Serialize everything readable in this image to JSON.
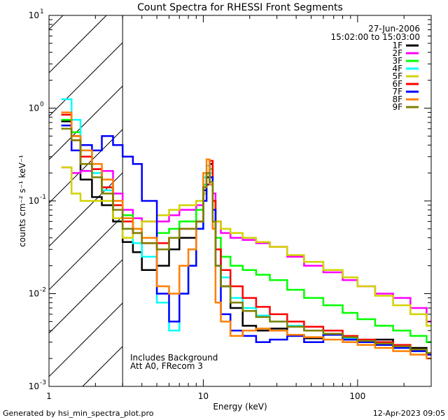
{
  "chart_data": {
    "type": "line",
    "title": "Count Spectra for RHESSI Front Segments",
    "xlabel": "Energy (keV)",
    "ylabel": "counts cm⁻² s⁻¹ keV⁻¹",
    "xscale": "log",
    "yscale": "log",
    "xlim": [
      1,
      300
    ],
    "ylim": [
      0.001,
      10
    ],
    "x_ticks": [
      {
        "value": 1,
        "label": "1"
      },
      {
        "value": 10,
        "label": "10"
      },
      {
        "value": 100,
        "label": "100"
      }
    ],
    "y_ticks": [
      {
        "value": 0.001,
        "base": "10",
        "exp": "-3"
      },
      {
        "value": 0.01,
        "base": "10",
        "exp": "-2"
      },
      {
        "value": 0.1,
        "base": "10",
        "exp": "-1"
      },
      {
        "value": 1,
        "base": "10",
        "exp": "0"
      },
      {
        "value": 10,
        "base": "10",
        "exp": "1"
      }
    ],
    "date": "27-Jun-2006",
    "time_range": "15:02:00 to 15:03:00",
    "hatched_region_upper_kev": 3,
    "annotations": [
      "Includes Background",
      "Att A0, FRecom 3"
    ],
    "legend_position": "top-right",
    "x_energy_keV": [
      1.2,
      1.4,
      1.6,
      1.9,
      2.2,
      2.6,
      3.0,
      3.5,
      4.0,
      5.0,
      6.0,
      7.0,
      8.0,
      9.0,
      10.0,
      10.5,
      11.0,
      11.5,
      12.0,
      13.0,
      15.0,
      18.0,
      22.0,
      27.0,
      35.0,
      45.0,
      60.0,
      80.0,
      100.0,
      130.0,
      170.0,
      220.0,
      280.0
    ],
    "series": [
      {
        "name": "1F",
        "color": "#000000",
        "values": [
          0.72,
          0.5,
          0.17,
          0.11,
          0.09,
          0.06,
          0.036,
          0.028,
          0.018,
          0.02,
          0.03,
          0.04,
          0.04,
          0.06,
          0.13,
          0.18,
          0.25,
          0.1,
          0.03,
          0.012,
          0.007,
          0.0045,
          0.004,
          0.0042,
          0.0035,
          0.0033,
          0.0036,
          0.0032,
          0.003,
          0.0032,
          0.0028,
          0.0026,
          0.0022
        ]
      },
      {
        "name": "2F",
        "color": "#ff00ff",
        "values": [
          0.23,
          0.2,
          0.21,
          0.22,
          0.21,
          0.12,
          0.08,
          0.065,
          0.06,
          0.06,
          0.07,
          0.08,
          0.08,
          0.09,
          0.15,
          0.2,
          0.22,
          0.12,
          0.06,
          0.045,
          0.04,
          0.038,
          0.035,
          0.032,
          0.025,
          0.02,
          0.017,
          0.014,
          0.012,
          0.01,
          0.009,
          0.007,
          0.005
        ]
      },
      {
        "name": "3F",
        "color": "#00ff00",
        "values": [
          0.75,
          0.55,
          0.3,
          0.2,
          0.14,
          0.09,
          0.07,
          0.05,
          0.04,
          0.045,
          0.05,
          0.06,
          0.06,
          0.08,
          0.15,
          0.2,
          0.22,
          0.1,
          0.04,
          0.025,
          0.02,
          0.018,
          0.016,
          0.014,
          0.011,
          0.009,
          0.0075,
          0.0062,
          0.0053,
          0.0045,
          0.004,
          0.0035,
          0.003
        ]
      },
      {
        "name": "4F",
        "color": "#00ffff",
        "values": [
          1.25,
          0.75,
          0.35,
          0.2,
          0.13,
          0.08,
          0.05,
          0.035,
          0.025,
          0.008,
          0.004,
          0.01,
          0.02,
          0.05,
          0.18,
          0.24,
          0.2,
          0.08,
          0.03,
          0.015,
          0.009,
          0.007,
          0.0058,
          0.005,
          0.0045,
          0.004,
          0.0036,
          0.0033,
          0.003,
          0.0028,
          0.0026,
          0.0024,
          0.0022
        ]
      },
      {
        "name": "5F",
        "color": "#d2d200",
        "values": [
          0.23,
          0.12,
          0.1,
          0.1,
          0.1,
          0.065,
          0.04,
          0.05,
          0.06,
          0.07,
          0.08,
          0.09,
          0.09,
          0.1,
          0.12,
          0.15,
          0.18,
          0.1,
          0.06,
          0.05,
          0.045,
          0.04,
          0.036,
          0.032,
          0.026,
          0.022,
          0.018,
          0.015,
          0.012,
          0.0095,
          0.0075,
          0.006,
          0.0045
        ]
      },
      {
        "name": "6F",
        "color": "#ff0000",
        "values": [
          0.85,
          0.45,
          0.3,
          0.22,
          0.14,
          0.09,
          0.06,
          0.045,
          0.035,
          0.035,
          0.04,
          0.05,
          0.05,
          0.06,
          0.14,
          0.2,
          0.27,
          0.1,
          0.03,
          0.018,
          0.012,
          0.009,
          0.0072,
          0.006,
          0.005,
          0.0044,
          0.004,
          0.0035,
          0.0032,
          0.003,
          0.0028,
          0.0025,
          0.0022
        ]
      },
      {
        "name": "7F",
        "color": "#0000ff",
        "values": [
          0.65,
          0.35,
          0.4,
          0.35,
          0.5,
          0.4,
          0.3,
          0.25,
          0.1,
          0.01,
          0.005,
          0.01,
          0.02,
          0.05,
          0.1,
          0.15,
          0.18,
          0.08,
          0.02,
          0.006,
          0.004,
          0.0035,
          0.003,
          0.0032,
          0.0035,
          0.003,
          0.0036,
          0.0032,
          0.003,
          0.0028,
          0.0026,
          0.0024,
          0.0022
        ]
      },
      {
        "name": "8F",
        "color": "#ff8000",
        "values": [
          0.9,
          0.5,
          0.35,
          0.25,
          0.17,
          0.1,
          0.065,
          0.05,
          0.04,
          0.012,
          0.01,
          0.02,
          0.03,
          0.06,
          0.2,
          0.28,
          0.15,
          0.05,
          0.008,
          0.005,
          0.0035,
          0.004,
          0.0042,
          0.004,
          0.0036,
          0.0034,
          0.0032,
          0.003,
          0.0028,
          0.0026,
          0.0024,
          0.0022,
          0.002
        ]
      },
      {
        "name": "9F",
        "color": "#808000",
        "values": [
          0.6,
          0.45,
          0.25,
          0.18,
          0.12,
          0.08,
          0.05,
          0.045,
          0.035,
          0.03,
          0.04,
          0.05,
          0.05,
          0.06,
          0.14,
          0.2,
          0.16,
          0.06,
          0.02,
          0.012,
          0.008,
          0.0065,
          0.0056,
          0.005,
          0.0044,
          0.004,
          0.0037,
          0.0034,
          0.0031,
          0.0029,
          0.0027,
          0.0025,
          0.0023
        ]
      }
    ]
  },
  "footer": {
    "generated_by": "Generated by hsi_min_spectra_plot.pro",
    "timestamp": "12-Apr-2023 09:05"
  }
}
